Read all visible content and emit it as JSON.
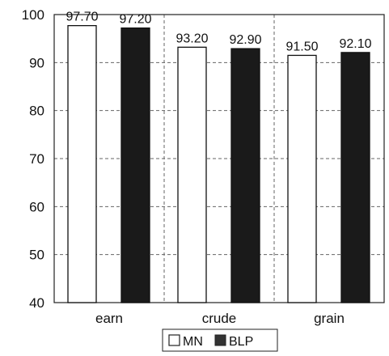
{
  "chart_data": {
    "type": "bar",
    "categories": [
      "earn",
      "crude",
      "grain"
    ],
    "series": [
      {
        "name": "MN",
        "values": [
          97.7,
          93.2,
          91.5
        ],
        "labels": [
          "97.70",
          "93.20",
          "91.50"
        ],
        "color": "#ffffff"
      },
      {
        "name": "BLP",
        "values": [
          97.2,
          92.9,
          92.1
        ],
        "labels": [
          "97.20",
          "92.90",
          "92.10"
        ],
        "color": "#1a1a1a"
      }
    ],
    "yticks": [
      "40",
      "50",
      "60",
      "70",
      "80",
      "90",
      "100"
    ],
    "ylim": [
      40,
      100
    ],
    "grid": "dashed",
    "legend": "bottom"
  }
}
